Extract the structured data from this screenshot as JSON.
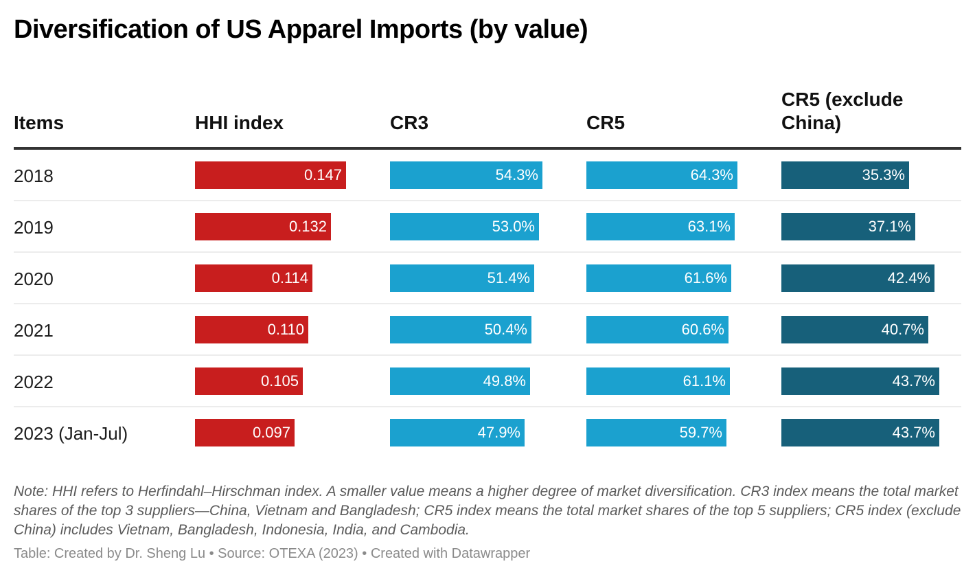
{
  "title": "Diversification of US Apparel Imports (by value)",
  "chart_data": {
    "type": "table",
    "title": "Diversification of US Apparel Imports (by value)",
    "columns": [
      "Items",
      "HHI index",
      "CR3",
      "CR5",
      "CR5 (exclude China)"
    ],
    "rows": [
      {
        "item": "2018",
        "hhi": 0.147,
        "cr3": 54.3,
        "cr5": 64.3,
        "cr5_ex": 35.3
      },
      {
        "item": "2019",
        "hhi": 0.132,
        "cr3": 53.0,
        "cr5": 63.1,
        "cr5_ex": 37.1
      },
      {
        "item": "2020",
        "hhi": 0.114,
        "cr3": 51.4,
        "cr5": 61.6,
        "cr5_ex": 42.4
      },
      {
        "item": "2021",
        "hhi": 0.11,
        "cr3": 50.4,
        "cr5": 60.6,
        "cr5_ex": 40.7
      },
      {
        "item": "2022",
        "hhi": 0.105,
        "cr3": 49.8,
        "cr5": 61.1,
        "cr5_ex": 43.7
      },
      {
        "item": "2023 (Jan-Jul)",
        "hhi": 0.097,
        "cr3": 47.9,
        "cr5": 59.7,
        "cr5_ex": 43.7
      }
    ],
    "labels": {
      "hhi": [
        "0.147",
        "0.132",
        "0.114",
        "0.110",
        "0.105",
        "0.097"
      ],
      "cr3": [
        "54.3%",
        "53.0%",
        "51.4%",
        "50.4%",
        "49.8%",
        "47.9%"
      ],
      "cr5": [
        "64.3%",
        "63.1%",
        "61.6%",
        "60.6%",
        "61.1%",
        "59.7%"
      ],
      "cr5_ex": [
        "35.3%",
        "37.1%",
        "42.4%",
        "40.7%",
        "43.7%",
        "43.7%"
      ]
    },
    "colors": {
      "hhi": "#c81e1e",
      "cr3": "#1ba1cf",
      "cr5": "#1ba1cf",
      "cr5_ex": "#17607a"
    }
  },
  "header": {
    "items": "Items",
    "hhi": "HHI index",
    "cr3": "CR3",
    "cr5": "CR5",
    "cr5_ex": "CR5 (exclude China)"
  },
  "note": "Note: HHI refers to Herfindahl–Hirschman index. A smaller value means a higher degree of market diversification. CR3 index means the total market shares of the top 3 suppliers—China, Vietnam and Bangladesh; CR5 index means the total market shares of the top 5 suppliers; CR5 index (exclude China) includes Vietnam, Bangladesh, Indonesia, India, and Cambodia.",
  "credit": "Table: Created by Dr. Sheng Lu • Source: OTEXA (2023) • Created with Datawrapper"
}
